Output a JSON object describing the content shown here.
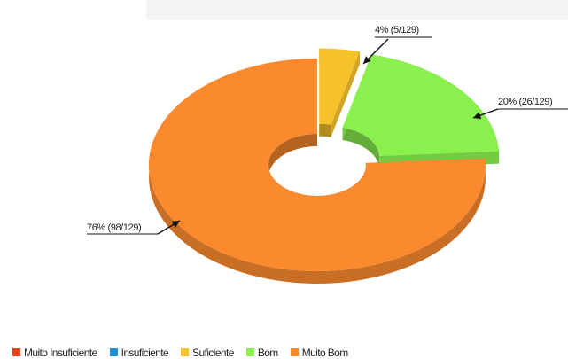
{
  "chart_data": {
    "type": "pie",
    "variant": "3d-donut-exploded",
    "slices": [
      {
        "name": "Muito Insuficiente",
        "value": 0,
        "color": "#e8411b"
      },
      {
        "name": "Insuficiente",
        "value": 0,
        "color": "#1f8fd6"
      },
      {
        "name": "Suficiente",
        "value": 5,
        "color": "#f7c12b",
        "label": "4% (5/129)"
      },
      {
        "name": "Bom",
        "value": 26,
        "color": "#8af04e",
        "label": "20% (26/129)"
      },
      {
        "name": "Muito Bom",
        "value": 98,
        "color": "#fb8a2e",
        "label": "76% (98/129)"
      }
    ],
    "total": 129,
    "legend_position": "bottom"
  }
}
